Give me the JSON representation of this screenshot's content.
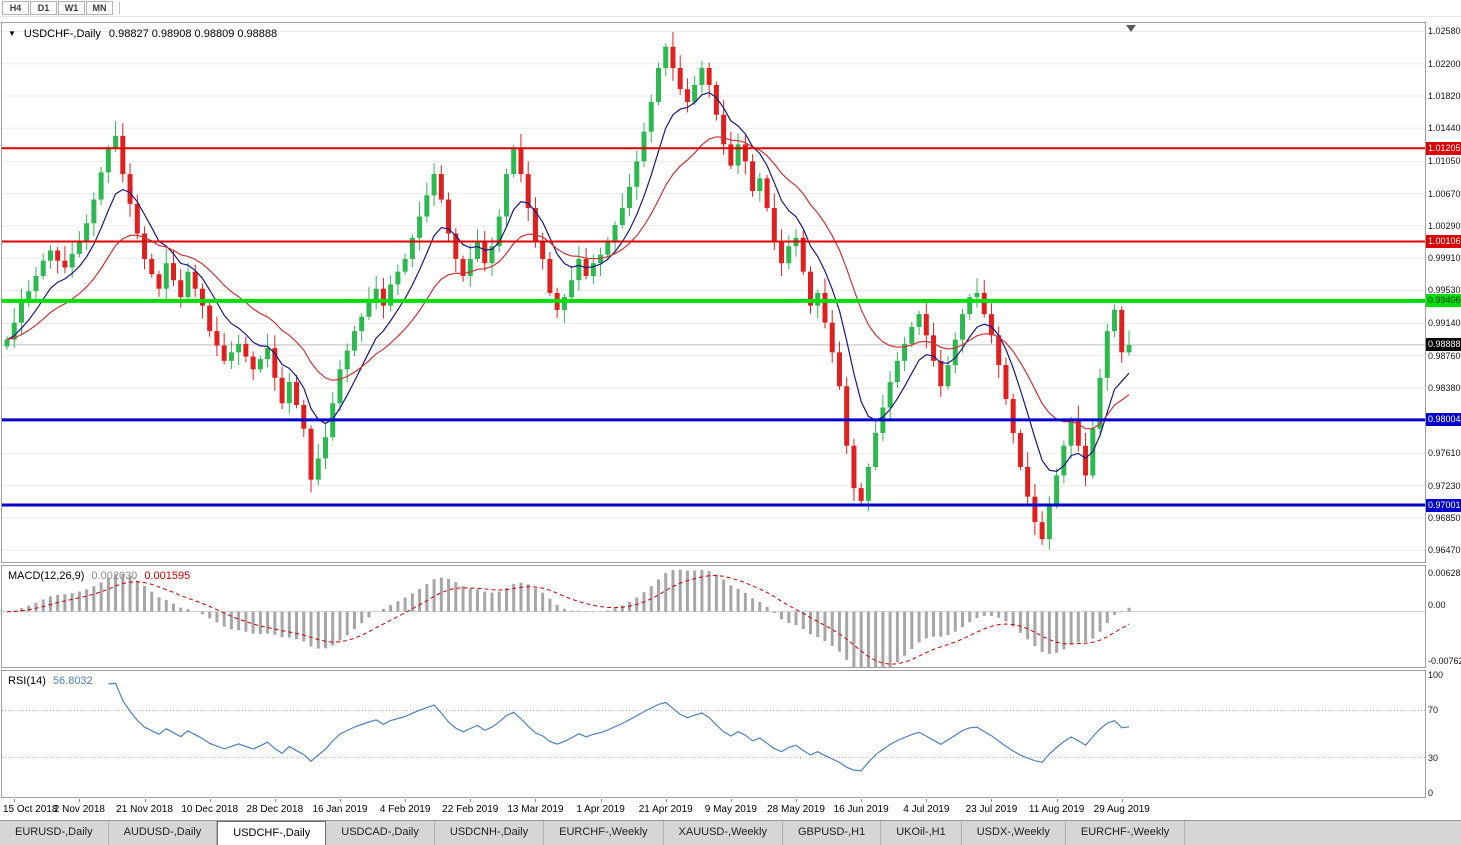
{
  "toolbar": {
    "timeframes": [
      "H4",
      "D1",
      "W1",
      "MN"
    ]
  },
  "chart": {
    "dropdown_icon": "▼",
    "title_symbol": "USDCHF-,Daily",
    "title_ohlc": "0.98827 0.98908 0.98809 0.98888"
  },
  "indicators": {
    "macd": {
      "label": "MACD(12,26,9)",
      "value_main": "0.002030",
      "value_signal": "0.001595",
      "axis": [
        "0.006286",
        "0.00",
        "-0.00762"
      ]
    },
    "rsi": {
      "label": "RSI(14)",
      "value": "56.8032",
      "axis": [
        "100",
        "70",
        "30",
        "0"
      ]
    }
  },
  "tabs": {
    "items": [
      {
        "label": "EURUSD-,Daily",
        "active": false
      },
      {
        "label": "AUDUSD-,Daily",
        "active": false
      },
      {
        "label": "USDCHF-,Daily",
        "active": true
      },
      {
        "label": "USDCAD-,Daily",
        "active": false
      },
      {
        "label": "USDCNH-,Daily",
        "active": false
      },
      {
        "label": "EURCHF-,Weekly",
        "active": false
      },
      {
        "label": "XAUUSD-,Weekly",
        "active": false
      },
      {
        "label": "GBPUSD-,H1",
        "active": false
      },
      {
        "label": "UKOil-,H1",
        "active": false
      },
      {
        "label": "USDX-,Weekly",
        "active": false
      },
      {
        "label": "EURCHF-,Weekly",
        "active": false
      }
    ]
  },
  "chart_data": {
    "type": "candlestick",
    "title": "USDCHF-,Daily",
    "x_labels": [
      "15 Oct 2018",
      "2 Nov 2018",
      "21 Nov 2018",
      "10 Dec 2018",
      "28 Dec 2018",
      "16 Jan 2019",
      "4 Feb 2019",
      "22 Feb 2019",
      "13 Mar 2019",
      "1 Apr 2019",
      "21 Apr 2019",
      "9 May 2019",
      "28 May 2019",
      "16 Jun 2019",
      "4 Jul 2019",
      "23 Jul 2019",
      "11 Aug 2019",
      "29 Aug 2019"
    ],
    "x_label_indices": [
      1,
      10,
      19,
      28,
      37,
      46,
      55,
      64,
      73,
      82,
      91,
      100,
      109,
      118,
      127,
      136,
      145,
      154
    ],
    "closes": [
      0.9895,
      0.9915,
      0.994,
      0.9952,
      0.997,
      0.9988,
      1.0,
      0.9988,
      0.998,
      0.9996,
      1.001,
      1.0032,
      1.006,
      1.0092,
      1.012,
      1.0135,
      1.009,
      1.0055,
      1.002,
      0.999,
      0.9972,
      0.9955,
      0.9985,
      0.9965,
      0.9945,
      0.9975,
      0.9955,
      0.9935,
      0.9905,
      0.9888,
      0.987,
      0.988,
      0.989,
      0.9875,
      0.986,
      0.9872,
      0.9885,
      0.985,
      0.982,
      0.9845,
      0.9818,
      0.979,
      0.973,
      0.9755,
      0.978,
      0.982,
      0.986,
      0.9882,
      0.9905,
      0.9922,
      0.994,
      0.9955,
      0.9935,
      0.996,
      0.9975,
      0.999,
      1.0015,
      1.004,
      1.0065,
      1.009,
      1.006,
      1.002,
      0.999,
      0.997,
      0.999,
      1.001,
      0.9985,
      1.0005,
      1.004,
      1.009,
      1.012,
      1.009,
      1.005,
      1.001,
      0.999,
      0.995,
      0.993,
      0.9945,
      0.9965,
      0.999,
      0.997,
      0.9985,
      0.9995,
      1.001,
      1.003,
      1.005,
      1.0075,
      1.0105,
      1.014,
      1.0175,
      1.0215,
      1.024,
      1.0215,
      1.019,
      1.0175,
      1.0195,
      1.0215,
      1.0195,
      1.016,
      1.0125,
      1.01,
      1.0125,
      1.0105,
      1.007,
      1.0085,
      1.005,
      1.001,
      0.9985,
      1.0005,
      1.0015,
      0.9975,
      0.9935,
      0.995,
      0.9915,
      0.988,
      0.984,
      0.977,
      0.972,
      0.9705,
      0.9745,
      0.9785,
      0.9815,
      0.9845,
      0.987,
      0.989,
      0.991,
      0.9925,
      0.99,
      0.987,
      0.984,
      0.9865,
      0.9895,
      0.9925,
      0.9945,
      0.995,
      0.9925,
      0.99,
      0.9865,
      0.9825,
      0.9785,
      0.9745,
      0.971,
      0.968,
      0.966,
      0.97,
      0.9735,
      0.977,
      0.98,
      0.977,
      0.9735,
      0.979,
      0.985,
      0.9905,
      0.993,
      0.988,
      0.98888
    ],
    "ylim": [
      0.9633,
      1.0268
    ],
    "y_axis_ticks": [
      "1.02580",
      "1.02200",
      "1.01820",
      "1.01440",
      "1.01050",
      "1.00670",
      "1.00290",
      "0.99910",
      "0.99530",
      "0.99140",
      "0.98760",
      "0.98380",
      "0.97610",
      "0.97230",
      "0.96850",
      "0.96470"
    ],
    "hlines": [
      {
        "value": 1.01205,
        "label": "1.01205",
        "color": "#dd0000",
        "text_color": "#ffffff",
        "width": 2
      },
      {
        "value": 1.00106,
        "label": "1.00106",
        "color": "#dd0000",
        "text_color": "#ffffff",
        "width": 2
      },
      {
        "value": 0.99406,
        "label": "0.99406",
        "color": "#00dd00",
        "text_color": "#003300",
        "width": 4
      },
      {
        "value": 0.98004,
        "label": "0.98004",
        "color": "#0000cc",
        "text_color": "#ffffff",
        "width": 3
      },
      {
        "value": 0.97001,
        "label": "0.97001",
        "color": "#0000cc",
        "text_color": "#ffffff",
        "width": 3
      }
    ],
    "current_price": {
      "value": 0.98888,
      "label": "0.98888",
      "color": "#000000",
      "text_color": "#ffffff"
    },
    "candle_up_color": "#2eb850",
    "candle_down_color": "#e01f1f",
    "ma_fast": {
      "period": 8,
      "color": "#181880"
    },
    "ma_slow": {
      "period": 20,
      "color": "#cc3333"
    },
    "macd": {
      "fast": 12,
      "slow": 26,
      "signal": 9,
      "ylim": [
        -0.00762,
        0.006286
      ],
      "hist_color": "#a6a6a6",
      "signal_color": "#cc0000"
    },
    "rsi": {
      "period": 14,
      "color": "#4f81bd",
      "levels": [
        30,
        70
      ],
      "ylim": [
        0,
        100
      ]
    }
  }
}
